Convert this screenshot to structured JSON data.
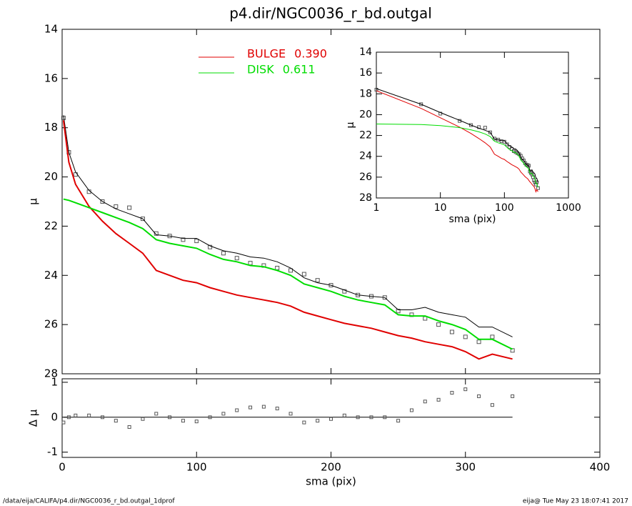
{
  "chart_data": [
    {
      "type": "line",
      "title": "p4.dir/NGC0036_r_bd.outgal",
      "ylabel": "μ",
      "xlim": [
        0,
        400
      ],
      "xticks": [
        0,
        100,
        200,
        300,
        400
      ],
      "ylim": [
        28,
        14
      ],
      "yticks": [
        14,
        16,
        18,
        20,
        22,
        24,
        26,
        28
      ],
      "x": [
        1,
        5,
        10,
        20,
        30,
        40,
        50,
        60,
        70,
        80,
        90,
        100,
        110,
        120,
        130,
        140,
        150,
        160,
        170,
        180,
        190,
        200,
        210,
        220,
        230,
        240,
        250,
        260,
        270,
        280,
        290,
        300,
        310,
        320,
        335
      ],
      "series": [
        {
          "name": "BULGE",
          "fraction_label": "0.390",
          "color": "#e00000",
          "values": [
            17.7,
            19.4,
            20.3,
            21.2,
            21.8,
            22.3,
            22.7,
            23.1,
            23.8,
            24.0,
            24.2,
            24.3,
            24.5,
            24.65,
            24.8,
            24.9,
            25.0,
            25.1,
            25.25,
            25.5,
            25.65,
            25.8,
            25.95,
            26.05,
            26.15,
            26.3,
            26.45,
            26.55,
            26.7,
            26.8,
            26.9,
            27.1,
            27.4,
            27.2,
            27.4
          ]
        },
        {
          "name": "DISK",
          "fraction_label": "0.611",
          "color": "#00dd00",
          "values": [
            20.9,
            20.95,
            21.05,
            21.25,
            21.45,
            21.65,
            21.85,
            22.1,
            22.55,
            22.7,
            22.8,
            22.9,
            23.15,
            23.35,
            23.45,
            23.6,
            23.65,
            23.8,
            24.0,
            24.35,
            24.5,
            24.65,
            24.85,
            25.0,
            25.1,
            25.2,
            25.6,
            25.65,
            25.65,
            25.85,
            26.0,
            26.2,
            26.6,
            26.6,
            27.0
          ]
        }
      ],
      "total": {
        "color": "#000000",
        "values": [
          17.5,
          19.0,
          19.8,
          20.55,
          21.0,
          21.3,
          21.5,
          21.7,
          22.35,
          22.4,
          22.5,
          22.5,
          22.8,
          23.0,
          23.1,
          23.25,
          23.3,
          23.45,
          23.7,
          24.1,
          24.3,
          24.4,
          24.6,
          24.8,
          24.85,
          24.9,
          25.4,
          25.4,
          25.3,
          25.5,
          25.6,
          25.7,
          26.1,
          26.1,
          26.5
        ]
      },
      "points": {
        "color": "#555555",
        "values": [
          17.6,
          19.0,
          19.9,
          20.6,
          21.0,
          21.2,
          21.25,
          21.7,
          22.3,
          22.4,
          22.55,
          22.6,
          22.85,
          23.1,
          23.3,
          23.5,
          23.6,
          23.7,
          23.8,
          23.95,
          24.2,
          24.4,
          24.65,
          24.8,
          24.85,
          24.9,
          25.45,
          25.6,
          25.75,
          26.0,
          26.3,
          26.5,
          26.7,
          26.5,
          27.05
        ]
      }
    },
    {
      "type": "scatter",
      "ylabel": "Δ μ",
      "xlabel": "sma (pix)",
      "xlim": [
        0,
        400
      ],
      "xticks": [
        0,
        100,
        200,
        300,
        400
      ],
      "ylim": [
        -1.15,
        1.1
      ],
      "yticks": [
        -1,
        0,
        1
      ],
      "values": [
        -0.15,
        0,
        0.05,
        0.05,
        0,
        -0.1,
        -0.28,
        -0.05,
        0.1,
        0,
        -0.1,
        -0.12,
        0,
        0.1,
        0.2,
        0.28,
        0.3,
        0.25,
        0.1,
        -0.15,
        -0.1,
        -0.05,
        0.05,
        0,
        0,
        0,
        -0.1,
        0.2,
        0.45,
        0.5,
        0.7,
        0.8,
        0.6,
        0.35,
        0.6
      ]
    },
    {
      "type": "inset",
      "xlabel": "sma (pix)",
      "ylabel": "μ",
      "xlog": true,
      "xlim": [
        1,
        1000
      ],
      "xticks": [
        1,
        10,
        100,
        1000
      ],
      "ylim": [
        28,
        14
      ],
      "yticks": [
        14,
        16,
        18,
        20,
        22,
        24,
        26,
        28
      ]
    }
  ],
  "footer": {
    "left": "/data/eija/CALIFA/p4.dir/NGC0036_r_bd.outgal_1dprof",
    "right": "eija@  Tue May 23 18:07:41 2017"
  }
}
